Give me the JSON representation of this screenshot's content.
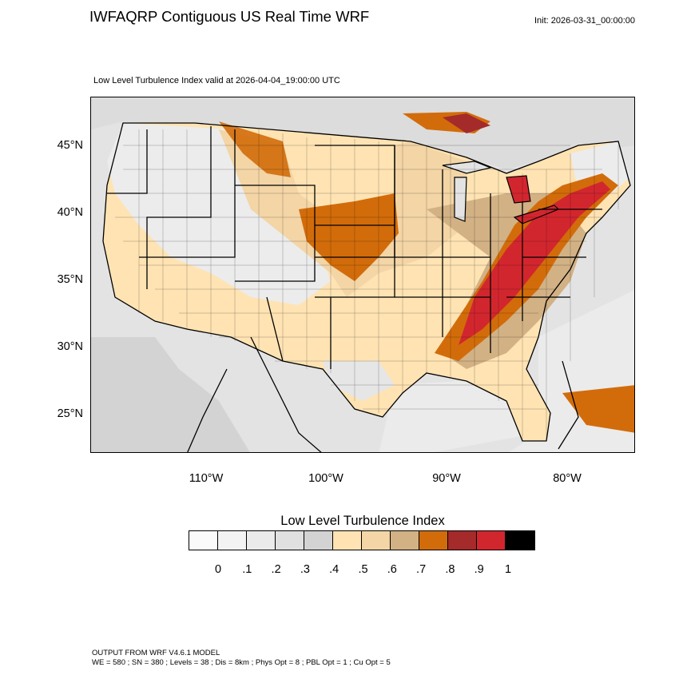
{
  "header": {
    "title": "IWFAQRP Contiguous US Real Time WRF",
    "init": "Init: 2026-03-31_00:00:00",
    "valid": "Low Level Turbulence Index valid at 2026-04-04_19:00:00 UTC"
  },
  "map": {
    "lat_labels": [
      "45°N",
      "40°N",
      "35°N",
      "30°N",
      "25°N"
    ],
    "lon_labels": [
      "110°W",
      "100°W",
      "90°W",
      "80°W"
    ],
    "lat_values": [
      45,
      40,
      35,
      30,
      25
    ],
    "lon_values": [
      -110,
      -100,
      -90,
      -80
    ]
  },
  "colorbar": {
    "title": "Low Level Turbulence Index",
    "ticks": [
      "0",
      ".1",
      ".2",
      ".3",
      ".4",
      ".5",
      ".6",
      ".7",
      ".8",
      ".9",
      "1"
    ],
    "colors": [
      "#fafafa",
      "#f3f3f3",
      "#ebebeb",
      "#e0e0e0",
      "#d3d3d3",
      "#ffe3b3",
      "#f3d5a6",
      "#d2b185",
      "#d26c0a",
      "#a52a2a",
      "#d2262e",
      "#000000"
    ]
  },
  "footer": {
    "line1": "OUTPUT FROM WRF V4.6.1 MODEL",
    "line2": "WE = 580 ; SN = 380 ; Levels = 38 ; Dis = 8km ; Phys Opt = 8 ; PBL Opt = 1 ; Cu Opt = 5"
  }
}
